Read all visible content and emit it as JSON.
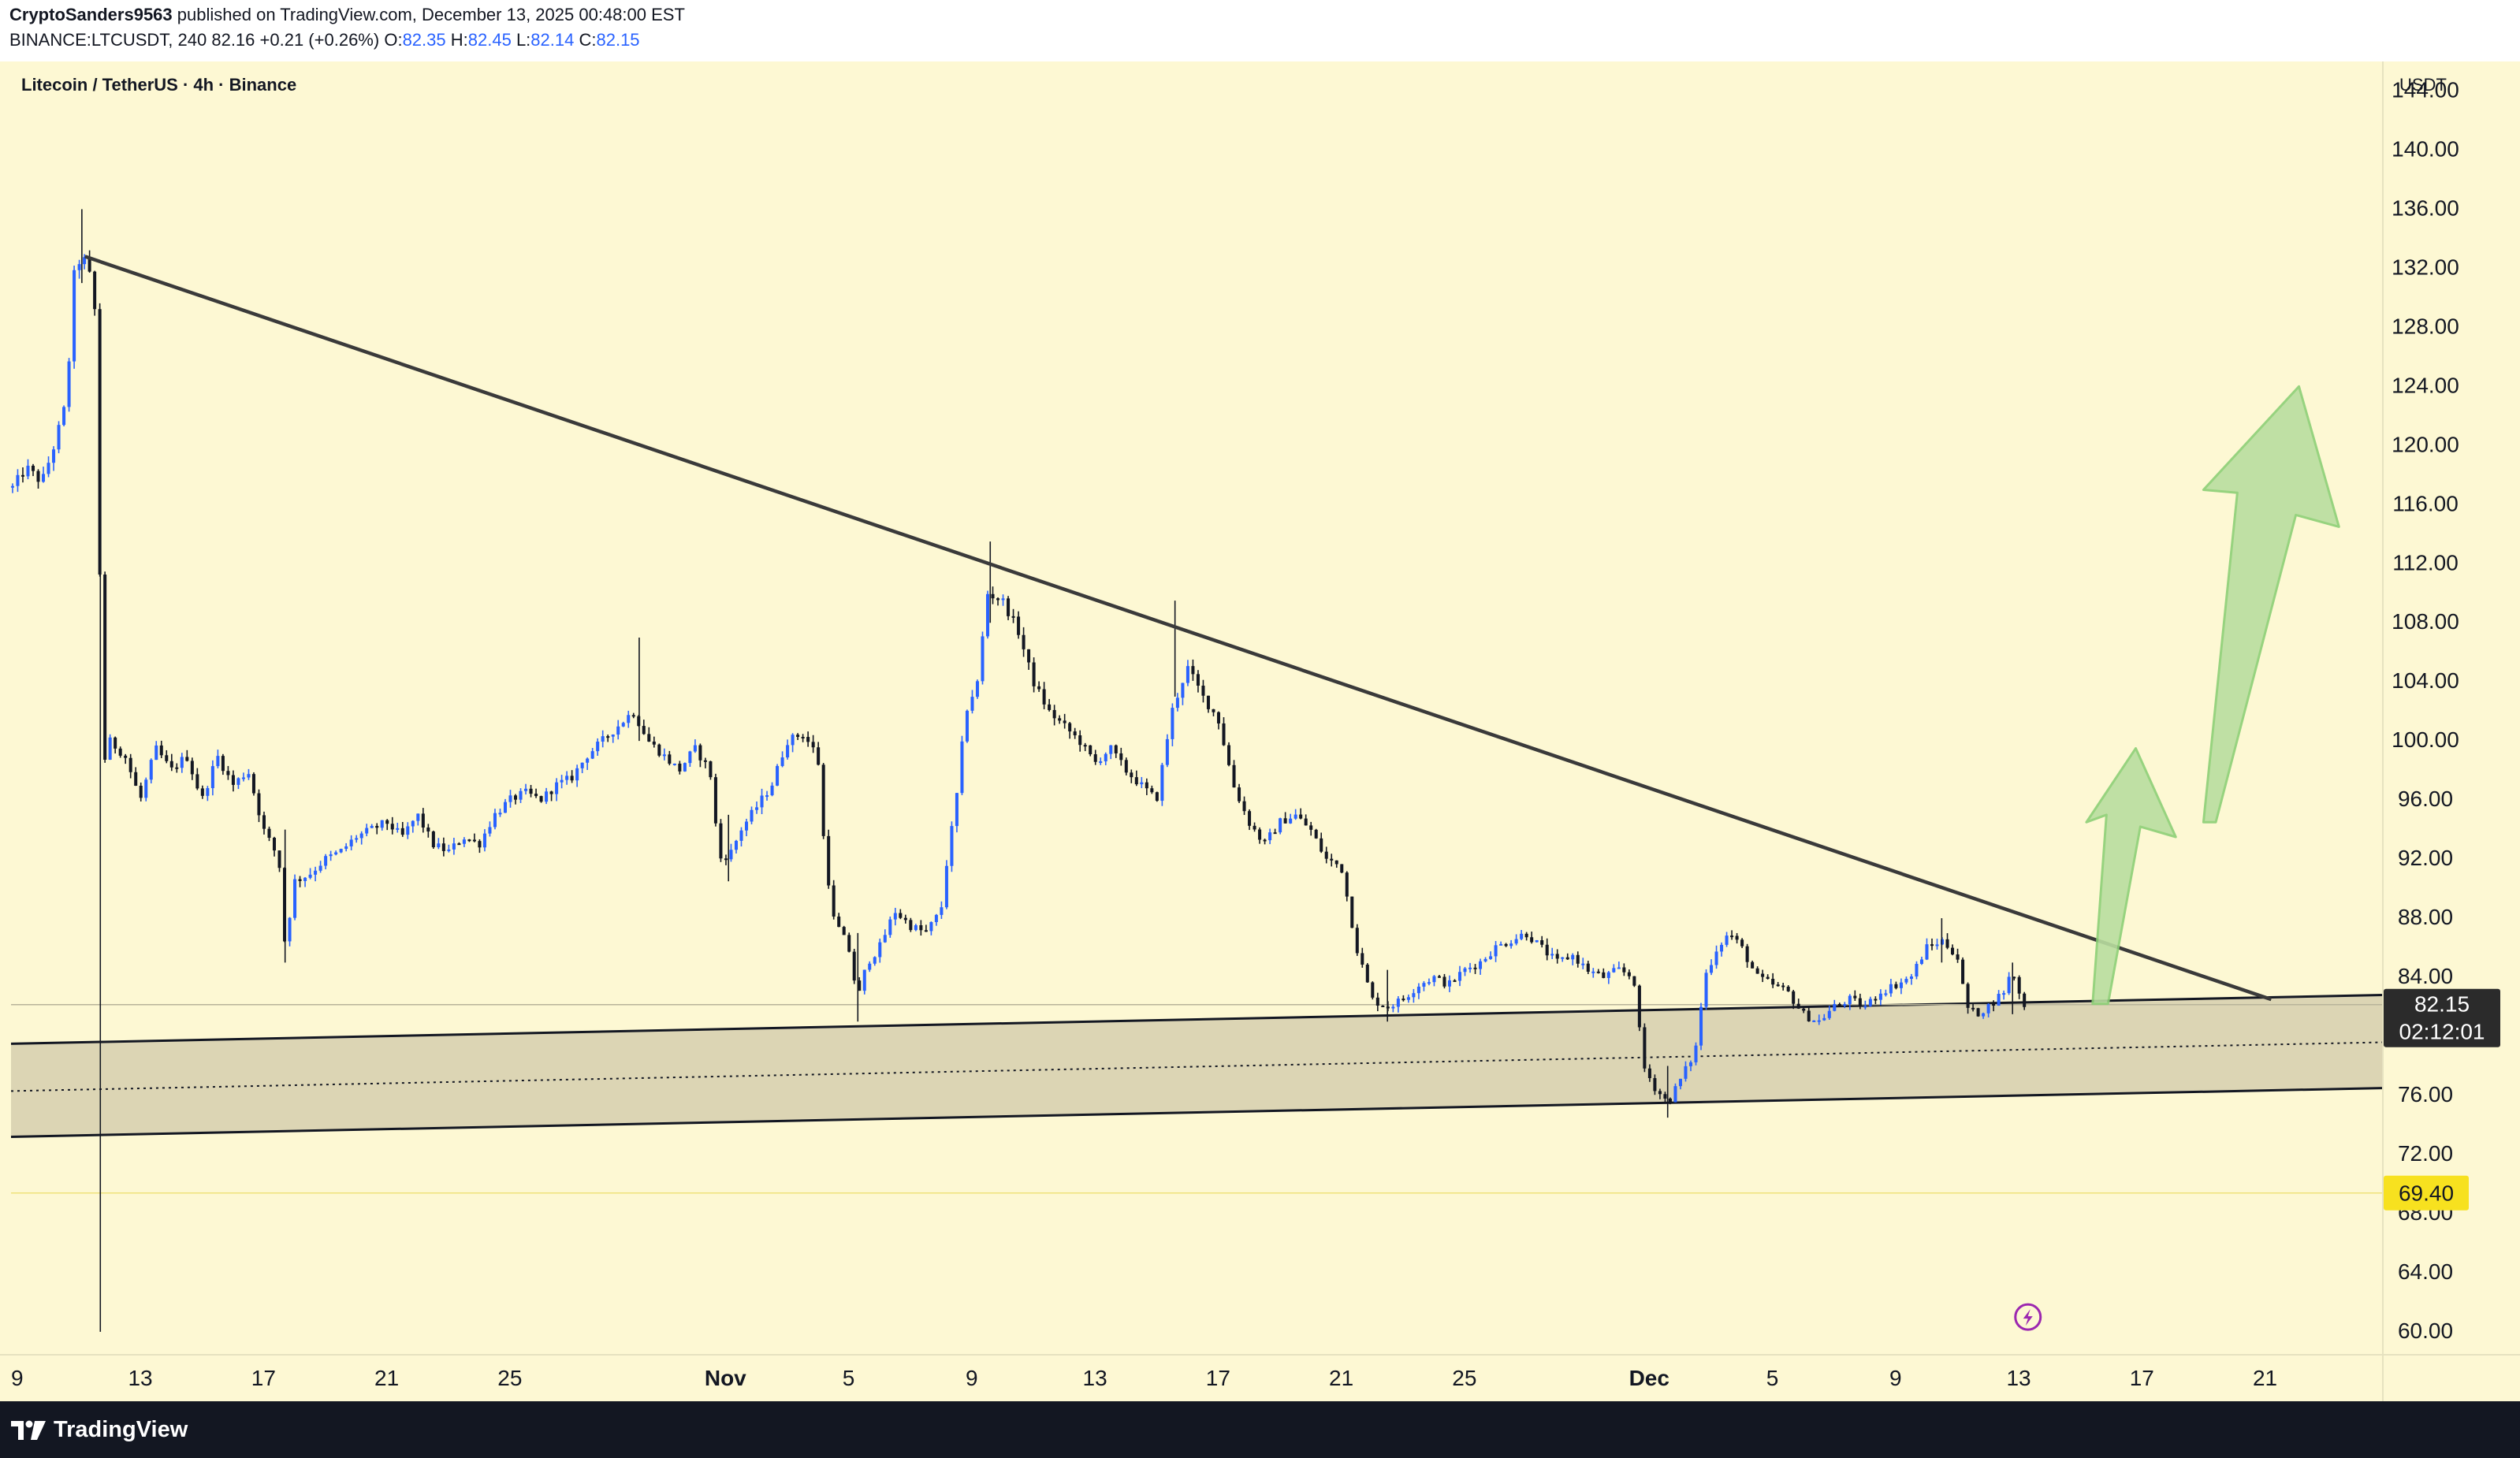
{
  "header": {
    "publisher": "CryptoSanders9563",
    "published_text": "published on TradingView.com, December 13, 2025 00:48:00 EST",
    "symbol": "BINANCE:LTCUSDT, 240",
    "last": "82.16",
    "change": "+0.21 (+0.26%)",
    "o_label": "O:",
    "o_value": "82.35",
    "h_label": "H:",
    "h_value": "82.45",
    "l_label": "L:",
    "l_value": "82.14",
    "c_label": "C:",
    "c_value": "82.15"
  },
  "footer": {
    "brand": "TradingView"
  },
  "colors": {
    "background": "#fdf8d3",
    "up_candle": "#2962ff",
    "down_candle": "#131722",
    "trendline": "#3a3a3a",
    "zone_fill": "#d6cfae",
    "arrow_fill": "#b9de9f",
    "arrow_stroke": "#8ccf76",
    "price_tag_bg": "#2b2b2b",
    "level_tag_bg": "#f7e11f"
  },
  "chart_data": {
    "type": "candlestick",
    "title": "Litecoin / TetherUS · 4h · Binance",
    "currency_label": "USDT",
    "x_axis": {
      "unit": "day index (0 = Oct 9)",
      "range": [
        -0.2,
        76.8
      ],
      "ticks": [
        {
          "x": 0,
          "label": "9"
        },
        {
          "x": 4,
          "label": "13"
        },
        {
          "x": 8,
          "label": "17"
        },
        {
          "x": 12,
          "label": "21"
        },
        {
          "x": 16,
          "label": "25"
        },
        {
          "x": 23,
          "label": "Nov"
        },
        {
          "x": 27,
          "label": "5"
        },
        {
          "x": 31,
          "label": "9"
        },
        {
          "x": 35,
          "label": "13"
        },
        {
          "x": 39,
          "label": "17"
        },
        {
          "x": 43,
          "label": "21"
        },
        {
          "x": 47,
          "label": "25"
        },
        {
          "x": 53,
          "label": "Dec"
        },
        {
          "x": 57,
          "label": "5"
        },
        {
          "x": 61,
          "label": "9"
        },
        {
          "x": 65,
          "label": "13"
        },
        {
          "x": 69,
          "label": "17"
        },
        {
          "x": 73,
          "label": "21"
        }
      ]
    },
    "y_axis": {
      "range": [
        58.5,
        146
      ],
      "ticks": [
        "60.00",
        "64.00",
        "68.00",
        "72.00",
        "76.00",
        "80.00",
        "84.00",
        "88.00",
        "92.00",
        "96.00",
        "100.00",
        "104.00",
        "108.00",
        "112.00",
        "116.00",
        "120.00",
        "124.00",
        "128.00",
        "132.00",
        "136.00",
        "140.00",
        "144.00"
      ]
    },
    "price_path": [
      [
        -0.2,
        117
      ],
      [
        0.3,
        118.5
      ],
      [
        0.8,
        117.5
      ],
      [
        1.2,
        120
      ],
      [
        1.6,
        123
      ],
      [
        1.85,
        131.5
      ],
      [
        2.1,
        133
      ],
      [
        2.35,
        131.5
      ],
      [
        2.6,
        128
      ],
      [
        2.75,
        98
      ],
      [
        3.0,
        100
      ],
      [
        3.5,
        99
      ],
      [
        4.0,
        96
      ],
      [
        4.5,
        99.5
      ],
      [
        5.0,
        98
      ],
      [
        5.5,
        99
      ],
      [
        6.0,
        96
      ],
      [
        6.5,
        99
      ],
      [
        7.0,
        97
      ],
      [
        7.5,
        98
      ],
      [
        8.0,
        94
      ],
      [
        8.5,
        92
      ],
      [
        8.7,
        86
      ],
      [
        9.0,
        90.5
      ],
      [
        9.5,
        91
      ],
      [
        10,
        92
      ],
      [
        10.5,
        92.5
      ],
      [
        11,
        93.5
      ],
      [
        11.5,
        94
      ],
      [
        12,
        94.5
      ],
      [
        12.5,
        93.5
      ],
      [
        13,
        95
      ],
      [
        13.5,
        93
      ],
      [
        14,
        92.5
      ],
      [
        14.5,
        93.5
      ],
      [
        15,
        93
      ],
      [
        15.5,
        95
      ],
      [
        16,
        96
      ],
      [
        16.5,
        96.5
      ],
      [
        17,
        96
      ],
      [
        17.5,
        97
      ],
      [
        18,
        97.5
      ],
      [
        18.5,
        99
      ],
      [
        19,
        100
      ],
      [
        19.5,
        101
      ],
      [
        20,
        102
      ],
      [
        20.5,
        100
      ],
      [
        21,
        99
      ],
      [
        21.5,
        98
      ],
      [
        22,
        99.5
      ],
      [
        22.5,
        98
      ],
      [
        22.8,
        92
      ],
      [
        23.2,
        92.5
      ],
      [
        23.5,
        94
      ],
      [
        24,
        95.5
      ],
      [
        24.5,
        97
      ],
      [
        25,
        100
      ],
      [
        25.5,
        100.5
      ],
      [
        26,
        99
      ],
      [
        26.2,
        93
      ],
      [
        26.5,
        88
      ],
      [
        27,
        86
      ],
      [
        27.3,
        82.5
      ],
      [
        27.6,
        85
      ],
      [
        28,
        86
      ],
      [
        28.5,
        88.5
      ],
      [
        29,
        87.5
      ],
      [
        29.5,
        87
      ],
      [
        30,
        88.5
      ],
      [
        30.2,
        92
      ],
      [
        30.5,
        96
      ],
      [
        30.8,
        102
      ],
      [
        31.2,
        104
      ],
      [
        31.5,
        110
      ],
      [
        32,
        109.5
      ],
      [
        32.5,
        107.5
      ],
      [
        33,
        104
      ],
      [
        33.5,
        102
      ],
      [
        34,
        101
      ],
      [
        34.5,
        100
      ],
      [
        35,
        98.5
      ],
      [
        35.5,
        99.5
      ],
      [
        36,
        98
      ],
      [
        36.5,
        97
      ],
      [
        37,
        96
      ],
      [
        37.5,
        102
      ],
      [
        38,
        105
      ],
      [
        38.5,
        103
      ],
      [
        39,
        101.5
      ],
      [
        39.5,
        97
      ],
      [
        40,
        94.5
      ],
      [
        40.5,
        93
      ],
      [
        41,
        94.5
      ],
      [
        41.5,
        95
      ],
      [
        42,
        94
      ],
      [
        42.5,
        92
      ],
      [
        43,
        91.5
      ],
      [
        43.5,
        86
      ],
      [
        44,
        82.5
      ],
      [
        44.5,
        82
      ],
      [
        45,
        82.5
      ],
      [
        45.5,
        83.5
      ],
      [
        46,
        84
      ],
      [
        46.5,
        83.5
      ],
      [
        47,
        84.5
      ],
      [
        47.5,
        85
      ],
      [
        48,
        86
      ],
      [
        48.5,
        86.5
      ],
      [
        49,
        87
      ],
      [
        49.5,
        86
      ],
      [
        50,
        85
      ],
      [
        50.5,
        85.5
      ],
      [
        51,
        84.5
      ],
      [
        51.5,
        84
      ],
      [
        52,
        84.5
      ],
      [
        52.5,
        84
      ],
      [
        52.8,
        78
      ],
      [
        53.2,
        76.5
      ],
      [
        53.6,
        75.5
      ],
      [
        54,
        77
      ],
      [
        54.5,
        79
      ],
      [
        54.8,
        84
      ],
      [
        55.2,
        86
      ],
      [
        55.6,
        87
      ],
      [
        56,
        86
      ],
      [
        56.5,
        84
      ],
      [
        57,
        83.5
      ],
      [
        57.5,
        83
      ],
      [
        58,
        81.5
      ],
      [
        58.5,
        81
      ],
      [
        59,
        82
      ],
      [
        59.5,
        82.5
      ],
      [
        60,
        82
      ],
      [
        60.5,
        83
      ],
      [
        61,
        83.5
      ],
      [
        61.5,
        84
      ],
      [
        62,
        86
      ],
      [
        62.5,
        86.5
      ],
      [
        63,
        85.5
      ],
      [
        63.3,
        82
      ],
      [
        63.6,
        81.5
      ],
      [
        64,
        82
      ],
      [
        64.5,
        83
      ],
      [
        64.8,
        84.5
      ],
      [
        65.1,
        82.2
      ],
      [
        65.3,
        82.15
      ]
    ],
    "spikes": [
      {
        "x": 2.1,
        "high": 136,
        "low": 131
      },
      {
        "x": 2.7,
        "high": 128.5,
        "low": 60
      },
      {
        "x": 8.7,
        "high": 94,
        "low": 85
      },
      {
        "x": 20.2,
        "high": 107,
        "low": 100
      },
      {
        "x": 23.1,
        "high": 95,
        "low": 90.5
      },
      {
        "x": 27.3,
        "high": 87,
        "low": 81
      },
      {
        "x": 31.6,
        "high": 113.5,
        "low": 108
      },
      {
        "x": 37.6,
        "high": 109.5,
        "low": 103
      },
      {
        "x": 44.5,
        "high": 84.5,
        "low": 81
      },
      {
        "x": 53.6,
        "high": 78,
        "low": 74.5
      },
      {
        "x": 62.5,
        "high": 88,
        "low": 85
      },
      {
        "x": 64.8,
        "high": 85,
        "low": 81.5
      }
    ],
    "trendlines": [
      {
        "name": "descending-resistance",
        "x1": 2.2,
        "y1": 132.8,
        "x2": 73.2,
        "y2": 82.5
      },
      {
        "name": "support-zone-upper",
        "x1": -0.2,
        "y1": 79.5,
        "x2": 76.8,
        "y2": 82.8
      },
      {
        "name": "support-zone-lower",
        "x1": -0.2,
        "y1": 73.2,
        "x2": 76.8,
        "y2": 76.5
      },
      {
        "name": "support-zone-mid",
        "x1": -0.2,
        "y1": 76.3,
        "x2": 76.8,
        "y2": 79.6
      }
    ],
    "horizontal_levels": [
      {
        "name": "last-price-line",
        "value": 82.15
      },
      {
        "name": "level-69-40",
        "value": 69.4
      }
    ],
    "arrows": [
      {
        "name": "small-arrow",
        "tail": [
          67.4,
          82.2
        ],
        "tip": [
          68.8,
          99.5
        ],
        "head_base_left": [
          67.2,
          94.5
        ],
        "head_base_right": [
          70.1,
          93.5
        ],
        "shaft_left_top": [
          67.85,
          95
        ],
        "shaft_right_top": [
          68.95,
          94.2
        ],
        "shaft_right_bottom": [
          67.9,
          82.2
        ]
      },
      {
        "name": "large-arrow",
        "tail": [
          71.0,
          94.5
        ],
        "tip": [
          74.1,
          124
        ],
        "head_base_left": [
          71.0,
          117
        ],
        "head_base_right": [
          75.4,
          114.5
        ],
        "shaft_left_top": [
          72.1,
          116.8
        ],
        "shaft_right_top": [
          74.0,
          115.3
        ],
        "shaft_right_bottom": [
          71.4,
          94.5
        ]
      }
    ],
    "price_tag": {
      "value": "82.15",
      "countdown": "02:12:01"
    },
    "level_tag": {
      "value": "69.40"
    },
    "event_icon": {
      "x": 65.3,
      "y": 61
    }
  }
}
